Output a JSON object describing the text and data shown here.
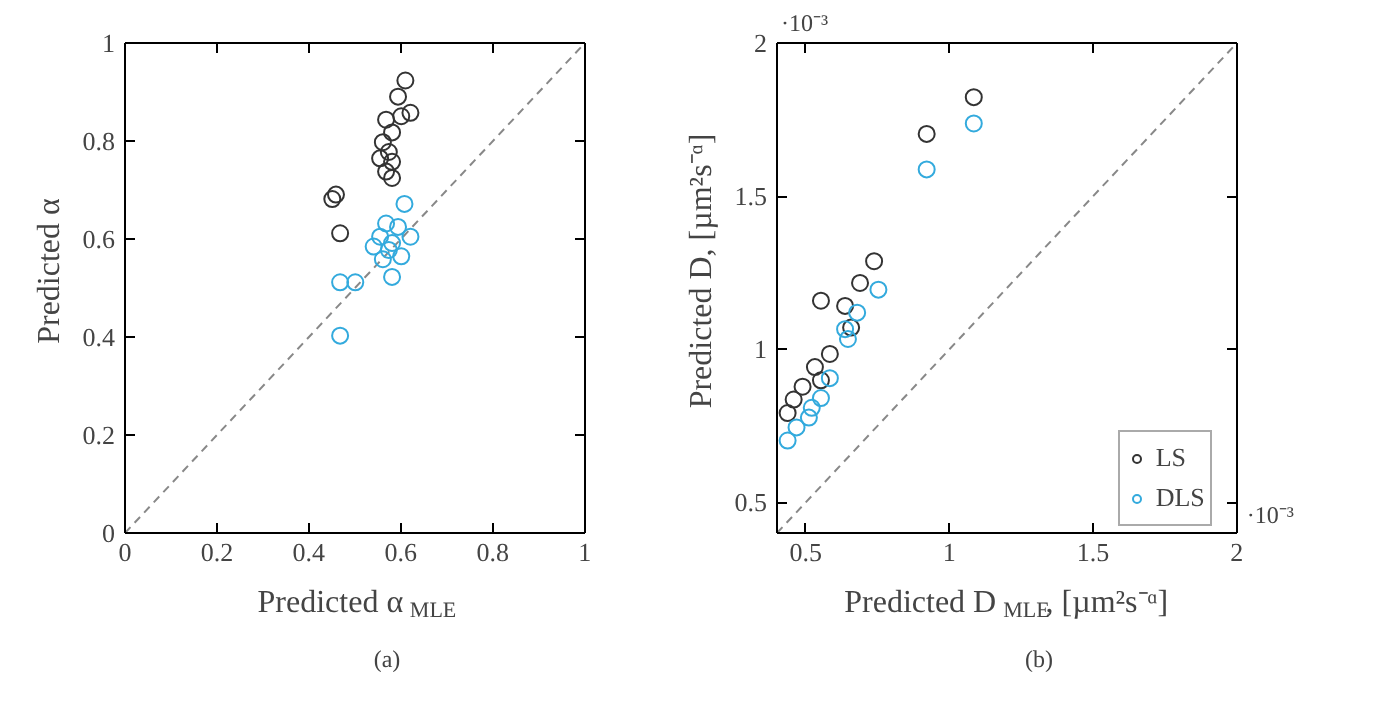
{
  "chart_data": [
    {
      "type": "scatter",
      "xlabel": "Predicted α$_{MLE}$",
      "ylabel": "Predicted α",
      "xlim": [
        0,
        1
      ],
      "ylim": [
        0,
        1
      ],
      "xticks": [
        0,
        0.2,
        0.4,
        0.6,
        0.8,
        1
      ],
      "yticks": [
        0,
        0.2,
        0.4,
        0.6,
        0.8,
        1
      ],
      "grid": false,
      "legend": false,
      "marker": "circle",
      "annotations": [
        "(a)"
      ],
      "series": [
        {
          "color": "#888888",
          "type": "line",
          "marker": "none",
          "line_style": "dashed",
          "x": [
            0,
            1
          ],
          "values": [
            0,
            1
          ]
        },
        {
          "color": "#333333",
          "x": [
            0.468,
            0.451,
            0.459,
            0.61,
            0.594,
            0.621,
            0.601,
            0.568,
            0.581,
            0.561,
            0.574,
            0.581,
            0.568,
            0.581,
            0.555
          ],
          "values": [
            0.612,
            0.682,
            0.691,
            0.924,
            0.891,
            0.858,
            0.851,
            0.844,
            0.818,
            0.798,
            0.778,
            0.758,
            0.738,
            0.725,
            0.765
          ]
        },
        {
          "color": "#33aadd",
          "x": [
            0.468,
            0.468,
            0.501,
            0.581,
            0.608,
            0.621,
            0.594,
            0.568,
            0.555,
            0.541,
            0.574,
            0.561,
            0.581,
            0.601
          ],
          "values": [
            0.403,
            0.512,
            0.512,
            0.523,
            0.672,
            0.605,
            0.625,
            0.632,
            0.605,
            0.585,
            0.578,
            0.559,
            0.592,
            0.565
          ]
        }
      ]
    },
    {
      "type": "scatter",
      "xlabel": "Predicted D$_{MLE}$, [µm²s⁻ᵅ]",
      "ylabel": "Predicted D, [µm²s⁻ᵅ]",
      "xlim": [
        0.4,
        2
      ],
      "ylim": [
        0.4,
        2
      ],
      "xticks": [
        0.5,
        1,
        1.5,
        2
      ],
      "yticks": [
        0.5,
        1,
        1.5,
        2
      ],
      "grid": false,
      "legend": "bottom right",
      "marker": "circle",
      "annotations": [
        "(b)",
        "·10⁻³",
        "·10⁻³"
      ],
      "series": [
        {
          "color": "#888888",
          "type": "line",
          "marker": "none",
          "line_style": "dashed",
          "x": [
            0.4,
            2
          ],
          "values": [
            0.4,
            2
          ]
        },
        {
          "name": "LS",
          "color": "#333333",
          "x": [
            1.085,
            0.921,
            0.738,
            0.689,
            0.637,
            0.553,
            0.658,
            0.584,
            0.532,
            0.489,
            0.458,
            0.437,
            0.553
          ],
          "values": [
            1.824,
            1.704,
            1.288,
            1.217,
            1.142,
            1.159,
            1.071,
            0.985,
            0.942,
            0.878,
            0.836,
            0.792,
            0.899
          ]
        },
        {
          "name": "DLS",
          "color": "#33aadd",
          "x": [
            1.085,
            0.921,
            0.753,
            0.679,
            0.647,
            0.584,
            0.553,
            0.511,
            0.468,
            0.437,
            0.521,
            0.637
          ],
          "values": [
            1.738,
            1.588,
            1.195,
            1.12,
            1.034,
            0.906,
            0.841,
            0.777,
            0.745,
            0.702,
            0.809,
            1.066
          ]
        }
      ]
    }
  ]
}
